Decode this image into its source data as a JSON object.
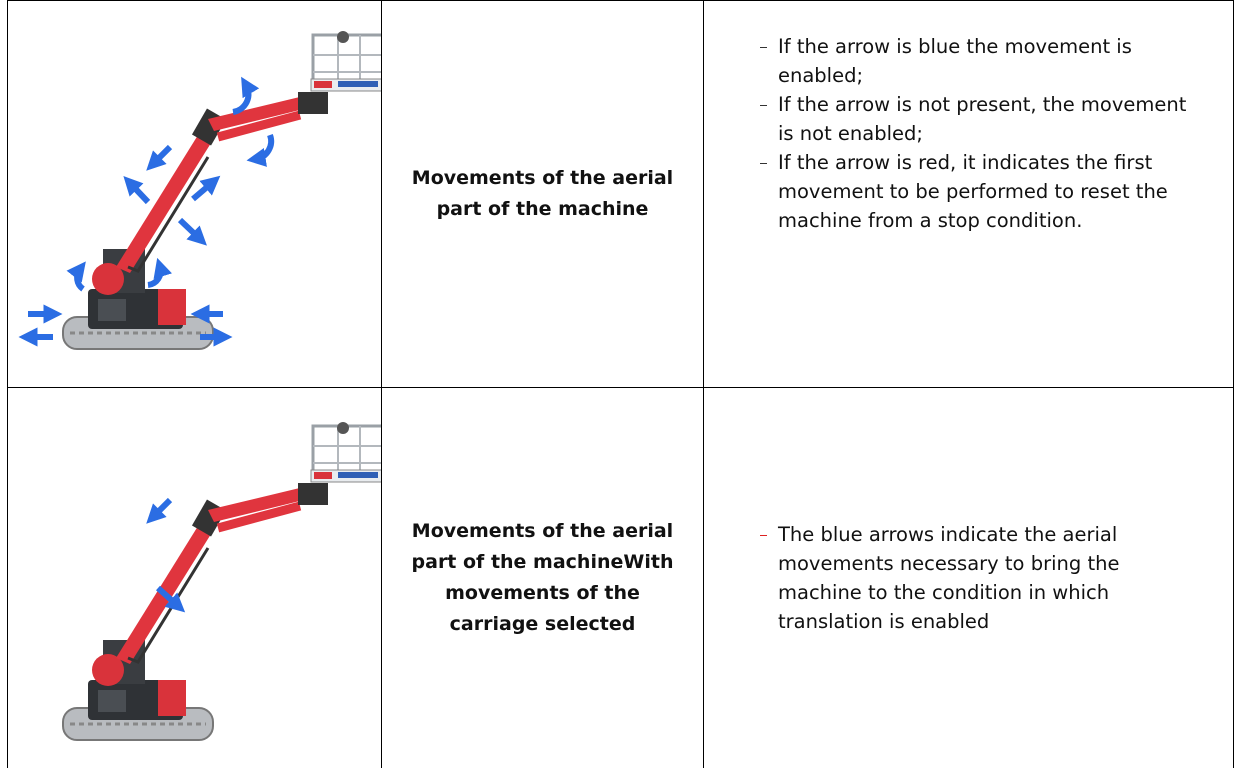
{
  "table": {
    "rows": [
      {
        "label": [
          "Movements of the aerial part of the machine"
        ],
        "bullets": [
          "If the arrow is blue the movement is enabled;",
          "If the arrow is not present, the movement is not enabled;",
          "If the arrow is red, it indicates the first movement to be performed to reset the machine from a stop condition."
        ]
      },
      {
        "label": [
          "Movements of the aerial part of the machine",
          "With movements of the carriage selected"
        ],
        "bullets": [
          "The blue arrows indicate the aerial movements necessary to bring the machine to the condition in which translation is enabled"
        ]
      }
    ]
  }
}
